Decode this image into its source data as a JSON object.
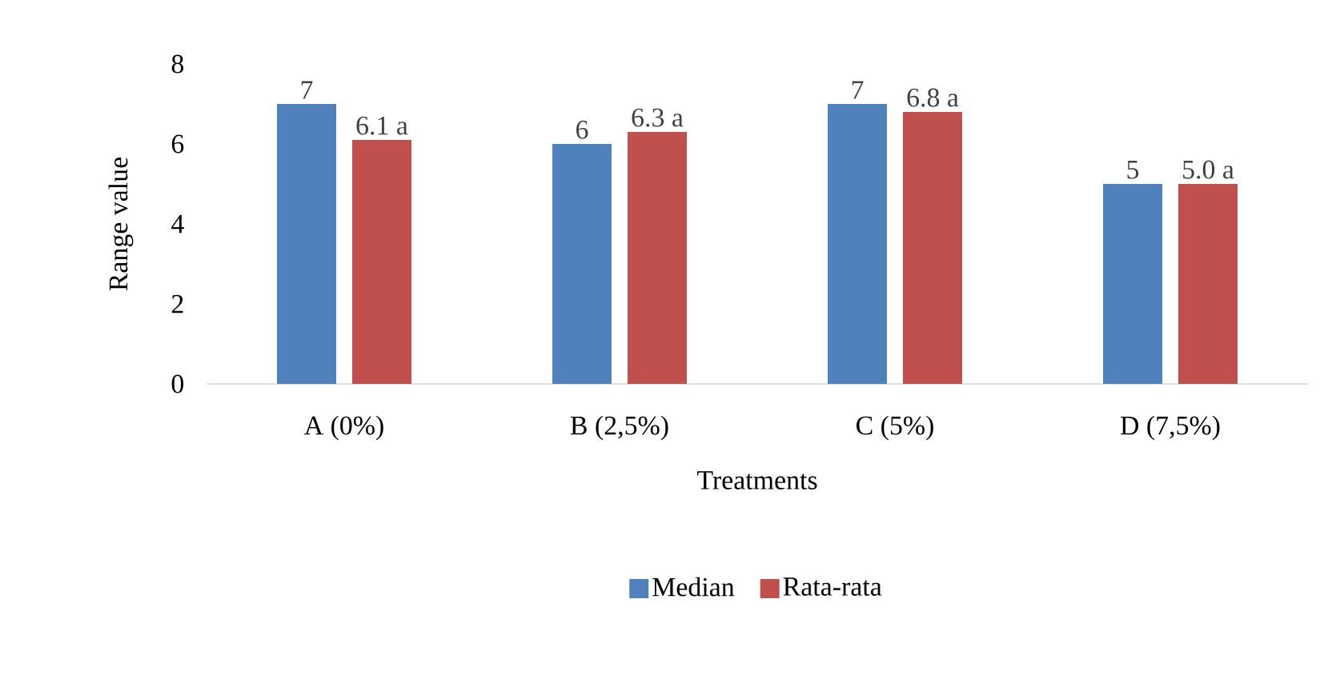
{
  "chart_data": {
    "type": "bar",
    "xlabel": "Treatments",
    "ylabel": "Range value",
    "categories": [
      "A (0%)",
      "B (2,5%)",
      "C (5%)",
      "D (7,5%)"
    ],
    "series": [
      {
        "name": "Median",
        "color": "#4f81bd",
        "values": [
          7,
          6,
          7,
          5
        ],
        "value_labels": [
          "7",
          "6",
          "7",
          "5"
        ]
      },
      {
        "name": "Rata-rata",
        "color": "#c0504d",
        "values": [
          6.1,
          6.3,
          6.8,
          5.0
        ],
        "value_labels": [
          "6.1 a",
          "6.3 a",
          "6.8 a",
          "5.0 a"
        ]
      }
    ],
    "ylim": [
      0,
      8
    ],
    "yticks": [
      0,
      2,
      4,
      6,
      8
    ],
    "grid": false,
    "legend": "bottom"
  }
}
